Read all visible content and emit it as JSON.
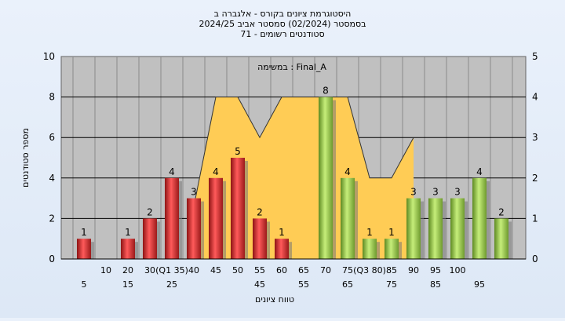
{
  "chart_data": {
    "type": "bar",
    "title_lines": [
      "היסטוגרמת ציונים בקורס - אלגברה ב",
      "בסמסטר (02/2024) סמסטר אביב 2024/25",
      "סטודנטים רשומים - 71"
    ],
    "legend_label": "במשימה : Final_A",
    "xlabel": "טווח ציונים",
    "ylabel": "מספר סטודנטים",
    "ylim": [
      0,
      10
    ],
    "y_ticks": [
      0,
      2,
      4,
      6,
      8,
      10
    ],
    "y2lim": [
      0,
      5
    ],
    "y2_ticks": [
      0,
      1,
      2,
      3,
      4,
      5
    ],
    "x_tick_labels_row1": [
      "10",
      "20",
      "30",
      "(Q1 35)",
      "40",
      "45",
      "50",
      "55",
      "60",
      "65",
      "70",
      "75",
      "(Q3 80)",
      "85",
      "90",
      "95",
      "100"
    ],
    "x_tick_labels_row2": [
      "5",
      "15",
      "25",
      "45",
      "55",
      "65",
      "75",
      "85",
      "95"
    ],
    "categories": [
      5,
      10,
      15,
      20,
      25,
      30,
      35,
      40,
      45,
      50,
      55,
      60,
      65,
      70,
      75,
      80,
      85,
      90,
      95,
      100
    ],
    "values": [
      1,
      0,
      1,
      2,
      4,
      3,
      4,
      5,
      2,
      1,
      0,
      8,
      4,
      1,
      1,
      3,
      3,
      3,
      4,
      2
    ],
    "bar_colors": [
      "red",
      "red",
      "red",
      "red",
      "red",
      "red",
      "red",
      "red",
      "red",
      "red",
      "red",
      "green",
      "green",
      "green",
      "green",
      "green",
      "green",
      "green",
      "green",
      "green"
    ],
    "area_series": {
      "x": [
        30,
        35,
        40,
        45,
        50,
        55,
        60,
        65,
        70,
        75,
        80
      ],
      "values": [
        1.3,
        4,
        4,
        3,
        4,
        4,
        4,
        4,
        2,
        2,
        3
      ]
    },
    "colors": {
      "red_bar": "#e23a3a",
      "green_bar": "#9acd4c",
      "area": "#ffcc55",
      "plot_bg": "#c0c0c0"
    }
  }
}
